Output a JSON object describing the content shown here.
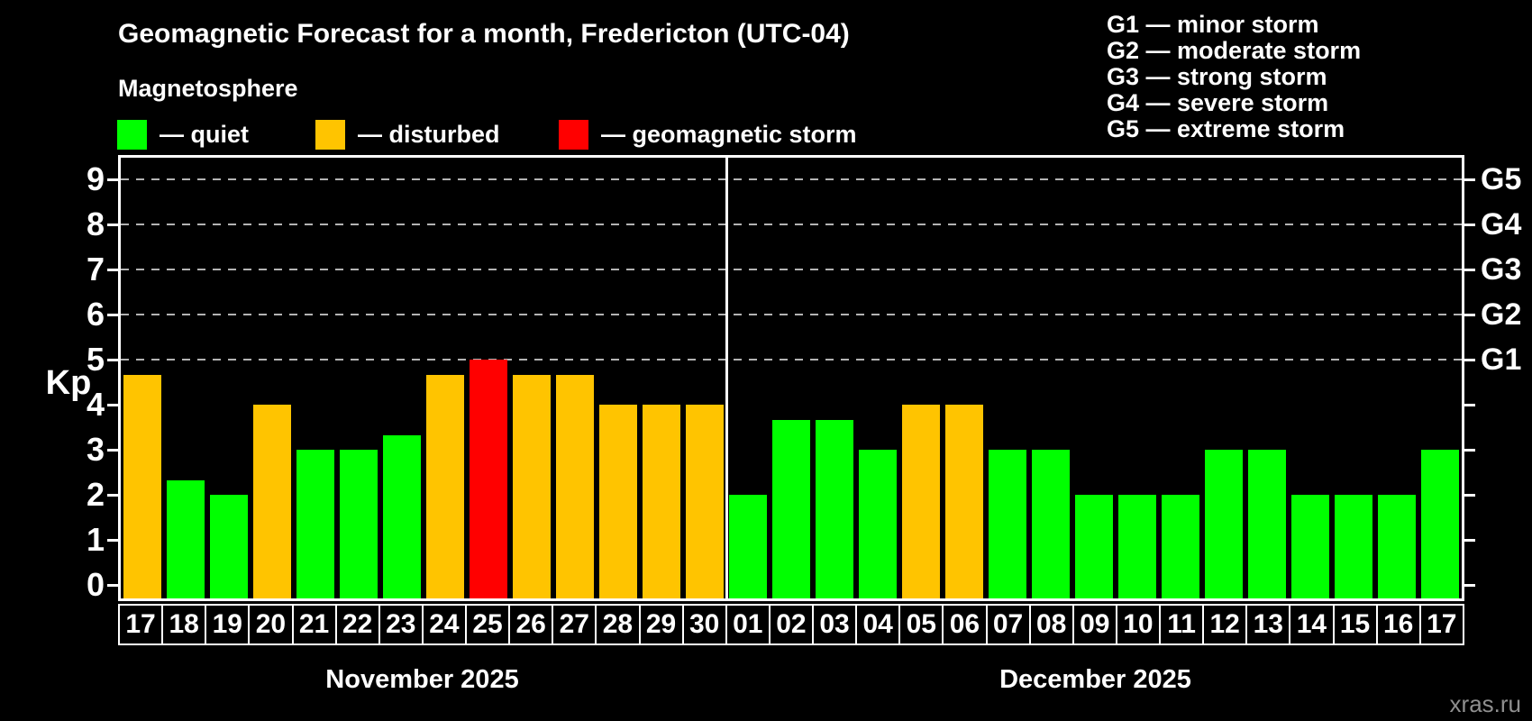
{
  "header": {
    "title": "Geomagnetic Forecast for a month, Fredericton (UTC-04)",
    "subtitle": "Magnetosphere"
  },
  "legend": {
    "items": [
      {
        "name": "quiet",
        "label": "— quiet",
        "swatch_color": "#00FF00"
      },
      {
        "name": "disturbed",
        "label": "— disturbed",
        "swatch_color": "#FFC400"
      },
      {
        "name": "storm",
        "label": "— geomagnetic storm",
        "swatch_color": "#FF0000"
      }
    ]
  },
  "storm_scale_legend": {
    "lines": [
      "G1 — minor storm",
      "G2 — moderate storm",
      "G3 — strong storm",
      "G4 — severe storm",
      "G5 — extreme storm"
    ]
  },
  "watermark": "xras.ru",
  "colors": {
    "quiet": "#00FF00",
    "disturbed": "#FFC400",
    "storm": "#FF0000",
    "grid": "#B3B3B3",
    "axis": "#FFFFFF",
    "background": "#000000",
    "watermark": "#8F8F8F"
  },
  "chart_data": {
    "type": "bar",
    "ylabel": "Kp",
    "y_ticks": [
      0,
      1,
      2,
      3,
      4,
      5,
      6,
      7,
      8,
      9
    ],
    "ylim": [
      -0.36,
      9.54
    ],
    "grid": "dashed horizontal at storm levels",
    "gridlines_at_kp": [
      5,
      6,
      7,
      8,
      9
    ],
    "right_axis_labels": [
      {
        "text": "G1",
        "kp": 5
      },
      {
        "text": "G2",
        "kp": 6
      },
      {
        "text": "G3",
        "kp": 7
      },
      {
        "text": "G4",
        "kp": 8
      },
      {
        "text": "G5",
        "kp": 9
      }
    ],
    "months": [
      {
        "label": "November 2025",
        "days": [
          {
            "day": "17",
            "kp": 4.67,
            "status": "disturbed"
          },
          {
            "day": "18",
            "kp": 2.33,
            "status": "quiet"
          },
          {
            "day": "19",
            "kp": 2.0,
            "status": "quiet"
          },
          {
            "day": "20",
            "kp": 4.0,
            "status": "disturbed"
          },
          {
            "day": "21",
            "kp": 3.0,
            "status": "quiet"
          },
          {
            "day": "22",
            "kp": 3.0,
            "status": "quiet"
          },
          {
            "day": "23",
            "kp": 3.33,
            "status": "quiet"
          },
          {
            "day": "24",
            "kp": 4.67,
            "status": "disturbed"
          },
          {
            "day": "25",
            "kp": 5.0,
            "status": "storm"
          },
          {
            "day": "26",
            "kp": 4.67,
            "status": "disturbed"
          },
          {
            "day": "27",
            "kp": 4.67,
            "status": "disturbed"
          },
          {
            "day": "28",
            "kp": 4.0,
            "status": "disturbed"
          },
          {
            "day": "29",
            "kp": 4.0,
            "status": "disturbed"
          },
          {
            "day": "30",
            "kp": 4.0,
            "status": "disturbed"
          }
        ]
      },
      {
        "label": "December 2025",
        "days": [
          {
            "day": "01",
            "kp": 2.0,
            "status": "quiet"
          },
          {
            "day": "02",
            "kp": 3.67,
            "status": "quiet"
          },
          {
            "day": "03",
            "kp": 3.67,
            "status": "quiet"
          },
          {
            "day": "04",
            "kp": 3.0,
            "status": "quiet"
          },
          {
            "day": "05",
            "kp": 4.0,
            "status": "disturbed"
          },
          {
            "day": "06",
            "kp": 4.0,
            "status": "disturbed"
          },
          {
            "day": "07",
            "kp": 3.0,
            "status": "quiet"
          },
          {
            "day": "08",
            "kp": 3.0,
            "status": "quiet"
          },
          {
            "day": "09",
            "kp": 2.0,
            "status": "quiet"
          },
          {
            "day": "10",
            "kp": 2.0,
            "status": "quiet"
          },
          {
            "day": "11",
            "kp": 2.0,
            "status": "quiet"
          },
          {
            "day": "12",
            "kp": 3.0,
            "status": "quiet"
          },
          {
            "day": "13",
            "kp": 3.0,
            "status": "quiet"
          },
          {
            "day": "14",
            "kp": 2.0,
            "status": "quiet"
          },
          {
            "day": "15",
            "kp": 2.0,
            "status": "quiet"
          },
          {
            "day": "16",
            "kp": 2.0,
            "status": "quiet"
          },
          {
            "day": "17",
            "kp": 3.0,
            "status": "quiet"
          }
        ]
      }
    ]
  }
}
